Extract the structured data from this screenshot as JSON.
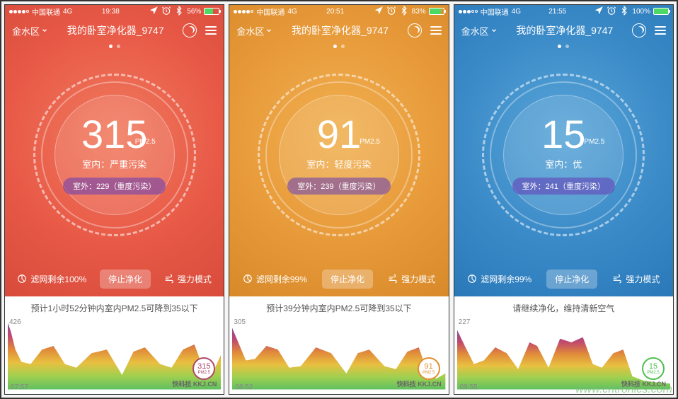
{
  "site_watermark": "www.cntronics.com",
  "logo_watermark": "快科技 KKJ.CN",
  "screens": [
    {
      "bg_color": "#e85a47",
      "gradient": "radial-gradient(circle at 50% 45%, #f07a5e 0%, #e85a47 55%, #d84a3a 100%)",
      "status": {
        "carrier": "中国联通",
        "network": "4G",
        "time": "19:38",
        "battery_pct": "56%",
        "battery_fill": 56,
        "signal_filled": 4
      },
      "nav": {
        "location": "金水区",
        "title": "我的卧室净化器_9747"
      },
      "pm_value": "315",
      "pm_unit": "PM2.5",
      "indoor": "室内：严重污染",
      "outdoor": "室外：229（重度污染）",
      "filter": "滤网剩余100%",
      "stop": "停止净化",
      "mode": "强力模式",
      "forecast": "预计1小时52分钟内室内PM2.5可降到35以下",
      "chart": {
        "y_max": "426",
        "x_start": "07:57",
        "badge_value": "315",
        "badge_sub": "PM2.5",
        "badge_color": "#b0476a",
        "points": [
          0,
          92,
          4,
          80,
          10,
          55,
          18,
          38,
          30,
          35,
          45,
          55,
          60,
          60,
          75,
          35,
          90,
          30,
          110,
          50,
          130,
          55,
          150,
          20,
          165,
          52,
          180,
          58,
          200,
          35,
          215,
          30,
          230,
          55,
          245,
          62,
          260,
          20,
          270,
          25,
          280,
          48
        ],
        "gradient_stops": [
          "#8a4a9a",
          "#c0486e",
          "#e08a3a",
          "#e8c040",
          "#a0d050",
          "#60c060"
        ]
      }
    },
    {
      "bg_color": "#e89a3a",
      "gradient": "radial-gradient(circle at 50% 45%, #f0b050 0%, #e89a3a 55%, #d88a2a 100%)",
      "status": {
        "carrier": "中国联通",
        "network": "4G",
        "time": "20:51",
        "battery_pct": "83%",
        "battery_fill": 83,
        "signal_filled": 4
      },
      "nav": {
        "location": "金水区",
        "title": "我的卧室净化器_9747"
      },
      "pm_value": "91",
      "pm_unit": "PM2.5",
      "indoor": "室内：轻度污染",
      "outdoor": "室外：239（重度污染）",
      "filter": "滤网剩余99%",
      "stop": "停止净化",
      "mode": "强力模式",
      "forecast": "预计39分钟内室内PM2.5可降到35以下",
      "chart": {
        "y_max": "305",
        "x_start": "08:52",
        "badge_value": "91",
        "badge_sub": "PM2.5",
        "badge_color": "#e09030",
        "points": [
          0,
          85,
          8,
          65,
          18,
          40,
          30,
          42,
          45,
          60,
          60,
          55,
          75,
          30,
          90,
          32,
          110,
          58,
          130,
          50,
          150,
          22,
          165,
          50,
          180,
          55,
          200,
          32,
          215,
          28,
          230,
          52,
          245,
          58,
          258,
          20,
          268,
          15,
          280,
          22
        ],
        "gradient_stops": [
          "#8a4a9a",
          "#c0486e",
          "#e08a3a",
          "#e8c040",
          "#a0d050",
          "#60c060"
        ]
      }
    },
    {
      "bg_color": "#3a8ac8",
      "gradient": "radial-gradient(circle at 50% 45%, #5aa6d8 0%, #3a8ac8 55%, #2a78b8 100%)",
      "status": {
        "carrier": "中国联通",
        "network": "4G",
        "time": "21:55",
        "battery_pct": "100%",
        "battery_fill": 100,
        "signal_filled": 3
      },
      "nav": {
        "location": "金水区",
        "title": "我的卧室净化器_9747"
      },
      "pm_value": "15",
      "pm_unit": "PM2.5",
      "indoor": "室内：优",
      "outdoor": "室外：241（重度污染）",
      "filter": "滤网剩余99%",
      "stop": "停止净化",
      "mode": "强力模式",
      "forecast": "请继续净化，维持清新空气",
      "chart": {
        "y_max": "227",
        "x_start": "09:55",
        "badge_value": "15",
        "badge_sub": "PM2.5",
        "badge_color": "#50c050",
        "points": [
          0,
          82,
          10,
          60,
          22,
          35,
          35,
          40,
          50,
          58,
          65,
          50,
          80,
          28,
          95,
          65,
          105,
          60,
          120,
          30,
          135,
          70,
          150,
          65,
          165,
          72,
          178,
          35,
          190,
          30,
          205,
          50,
          218,
          55,
          230,
          18,
          245,
          12,
          260,
          10,
          280,
          8
        ],
        "gradient_stops": [
          "#8a4a9a",
          "#c0486e",
          "#e08a3a",
          "#e8c040",
          "#a0d050",
          "#60c060"
        ]
      }
    }
  ]
}
